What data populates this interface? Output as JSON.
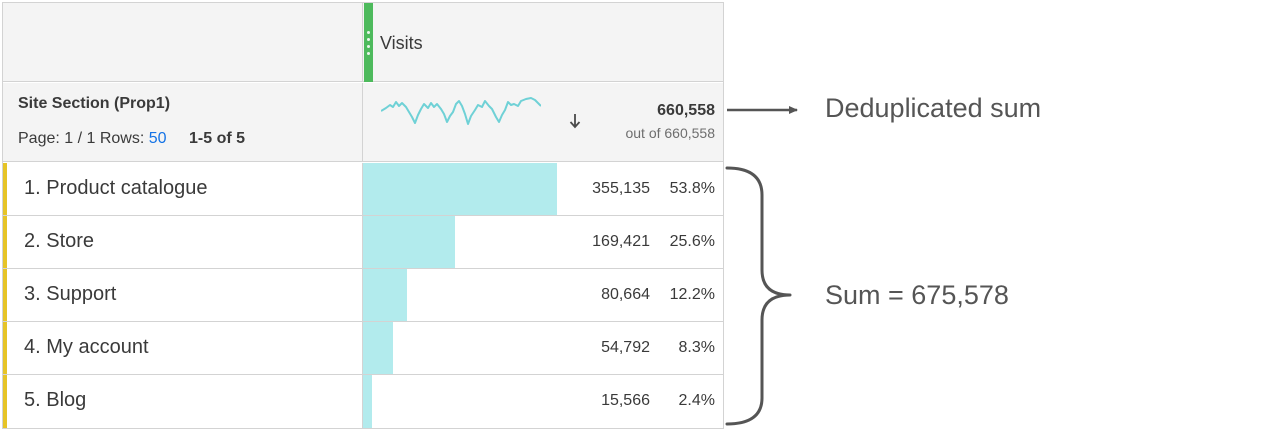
{
  "header": {
    "metric_title": "Visits"
  },
  "summary": {
    "dimension_title": "Site Section (Prop1)",
    "page_label": "Page: 1 / 1",
    "rows_label": "Rows:",
    "rows_value": "50",
    "range": "1-5 of 5",
    "total": "660,558",
    "out_of": "out of 660,558",
    "sort_icon": "arrow-down-icon"
  },
  "rows": [
    {
      "label": "1. Product catalogue",
      "value": "355,135",
      "percent": "53.8%",
      "share": 0.538
    },
    {
      "label": "2. Store",
      "value": "169,421",
      "percent": "25.6%",
      "share": 0.256
    },
    {
      "label": "3. Support",
      "value": "80,664",
      "percent": "12.2%",
      "share": 0.122
    },
    {
      "label": "4. My account",
      "value": "54,792",
      "percent": "8.3%",
      "share": 0.083
    },
    {
      "label": "5. Blog",
      "value": "15,566",
      "percent": "2.4%",
      "share": 0.024
    }
  ],
  "annotations": {
    "dedup": "Deduplicated sum",
    "sum": "Sum = 675,578"
  },
  "colors": {
    "metric_bar": "#4dba5c",
    "row_accent": "#e6c427",
    "row_bar": "#b2ebed",
    "sparkline": "#6fd1d6",
    "link": "#1473e6"
  }
}
